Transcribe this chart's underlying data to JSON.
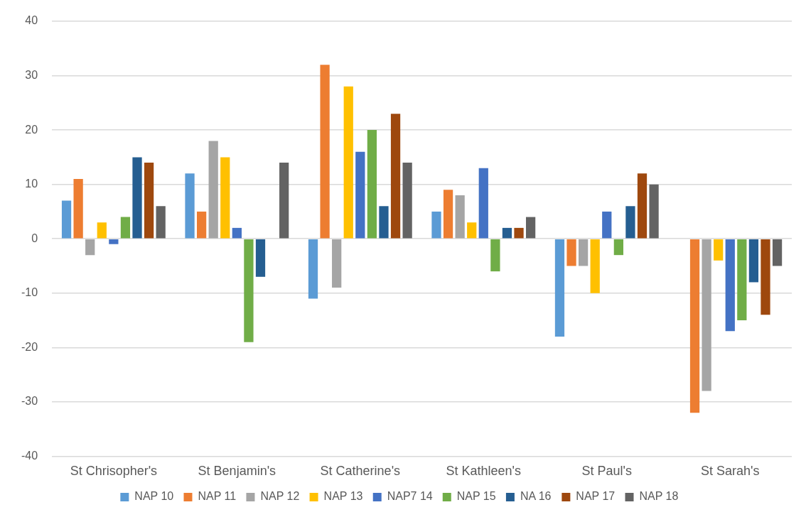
{
  "chart_data": {
    "type": "bar",
    "categories": [
      "St Chrisopher's",
      "St Benjamin's",
      "St Catherine's",
      "St Kathleen's",
      "St Paul's",
      "St Sarah's"
    ],
    "series": [
      {
        "name": "NAP 10",
        "color": "#5b9bd5",
        "values": [
          7,
          12,
          -11,
          5,
          -18,
          0
        ]
      },
      {
        "name": "NAP 11",
        "color": "#ed7d31",
        "values": [
          11,
          5,
          32,
          9,
          -5,
          -32
        ]
      },
      {
        "name": "NAP 12",
        "color": "#a5a5a5",
        "values": [
          -3,
          18,
          -9,
          8,
          -5,
          -28
        ]
      },
      {
        "name": "NAP 13",
        "color": "#ffc000",
        "values": [
          3,
          15,
          28,
          3,
          -10,
          -4
        ]
      },
      {
        "name": "NAP7 14",
        "color": "#4472c4",
        "values": [
          -1,
          2,
          16,
          13,
          5,
          -17
        ]
      },
      {
        "name": "NAP 15",
        "color": "#70ad47",
        "values": [
          4,
          -19,
          20,
          -6,
          -3,
          -15
        ]
      },
      {
        "name": "NA 16",
        "color": "#255e91",
        "values": [
          15,
          -7,
          6,
          2,
          6,
          -8
        ]
      },
      {
        "name": "NAP 17",
        "color": "#9e480e",
        "values": [
          14,
          0,
          23,
          2,
          12,
          -14
        ]
      },
      {
        "name": "NAP 18",
        "color": "#636363",
        "values": [
          6,
          14,
          14,
          4,
          10,
          -5
        ]
      }
    ],
    "ylim": [
      -40,
      40
    ],
    "yticks": [
      -40,
      -30,
      -20,
      -10,
      0,
      10,
      20,
      30,
      40
    ],
    "grid": "y",
    "legend": "bottom"
  }
}
